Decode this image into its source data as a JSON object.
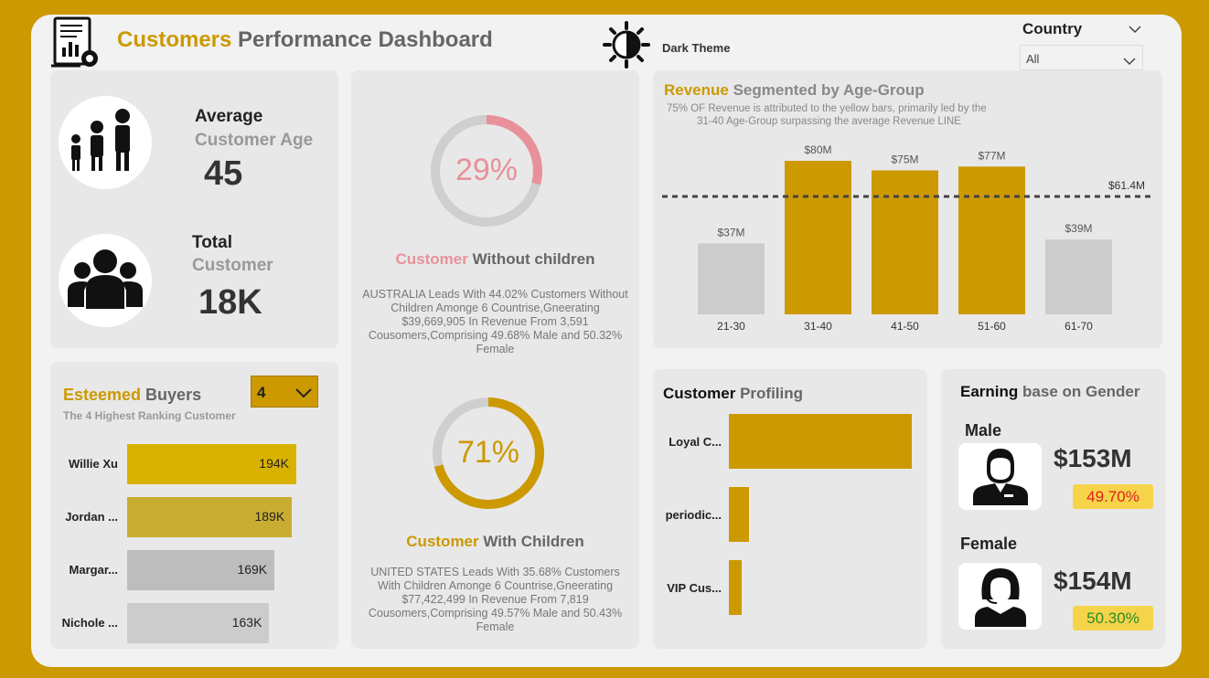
{
  "header": {
    "title_highlight": "Customers",
    "title_rest": " Performance Dashboard",
    "theme_label": "Dark Theme",
    "icons": {
      "dashboard": "report-gear-icon",
      "theme": "sun-half-icon"
    },
    "country_filter": {
      "label": "Country",
      "selected": "All"
    }
  },
  "age_card": {
    "title_line1": "Average",
    "title_line2": "Customer Age",
    "value": "45",
    "icon": "family-icon"
  },
  "total_card": {
    "title_line1": "Total",
    "title_line2": "Customer",
    "value": "18K",
    "icon": "group-users-icon"
  },
  "buyers": {
    "title_highlight": "Esteemed",
    "title_rest": " Buyers",
    "subtitle": "The 4 Highest Ranking Customer",
    "top_n_selected": "4",
    "items": [
      {
        "name": "Willie Xu",
        "value_label": "194K",
        "value": 194,
        "color": "#d9b200"
      },
      {
        "name": "Jordan ...",
        "value_label": "189K",
        "value": 189,
        "color": "#c8ad32"
      },
      {
        "name": "Margar...",
        "value_label": "169K",
        "value": 169,
        "color": "#bdbdbd"
      },
      {
        "name": "Nichole ...",
        "value_label": "163K",
        "value": 163,
        "color": "#cccccc"
      }
    ]
  },
  "children": {
    "without": {
      "percent_label": "29%",
      "percent": 29,
      "title_highlight": "Customer",
      "title_rest": " Without children",
      "description": "AUSTRALIA Leads With 44.02% Customers Without Children Amonge 6 Countrise,Gneerating $39,669,905 In Revenue From 3,591 Cousomers,Comprising 49.68% Male and 50.32% Female",
      "color": "#e8919a"
    },
    "with": {
      "percent_label": "71%",
      "percent": 71,
      "title_highlight": "Customer",
      "title_rest": " With Children",
      "description": "UNITED STATES Leads With 35.68% Customers With Children Amonge 6 Countrise,Gneerating $77,422,499 In Revenue From 7,819 Cousomers,Comprising 49.57% Male and 50.43% Female",
      "color": "#cc9900"
    }
  },
  "revenue": {
    "title_highlight": "Revenue",
    "title_rest": " Segmented by Age-Group",
    "subtitle_line1": "75% OF Revenue is attributed to the yellow bars, primarily led by the",
    "subtitle_line2": "31-40 Age-Group surpassing  the average Revenue LINE",
    "average_label": "$61.4M"
  },
  "profiling": {
    "title_bold": "Customer",
    "title_rest": " Profiling",
    "items": [
      {
        "name": "Loyal C...",
        "value": 100
      },
      {
        "name": "periodic...",
        "value": 11
      },
      {
        "name": "VIP Cus...",
        "value": 7
      }
    ]
  },
  "gender": {
    "title_bold": "Earning",
    "title_rest": " base on Gender",
    "male": {
      "label": "Male",
      "revenue": "$153M",
      "share": "49.70%",
      "share_color": "#e02020",
      "icon": "male-user-icon"
    },
    "female": {
      "label": "Female",
      "revenue": "$154M",
      "share": "50.30%",
      "share_color": "#2a8a2a",
      "icon": "female-headset-icon"
    }
  },
  "chart_data": {
    "type": "bar",
    "title": "Revenue Segmented by Age-Group",
    "categories": [
      "21-30",
      "31-40",
      "41-50",
      "51-60",
      "61-70"
    ],
    "values": [
      37,
      80,
      75,
      77,
      39
    ],
    "data_labels": [
      "$37M",
      "$80M",
      "$75M",
      "$77M",
      "$39M"
    ],
    "highlight": [
      false,
      true,
      true,
      true,
      false
    ],
    "average_line": 61.4,
    "unit": "M",
    "ylim": [
      0,
      90
    ],
    "colors": {
      "highlight": "#cc9900",
      "base": "#cccccc"
    }
  }
}
